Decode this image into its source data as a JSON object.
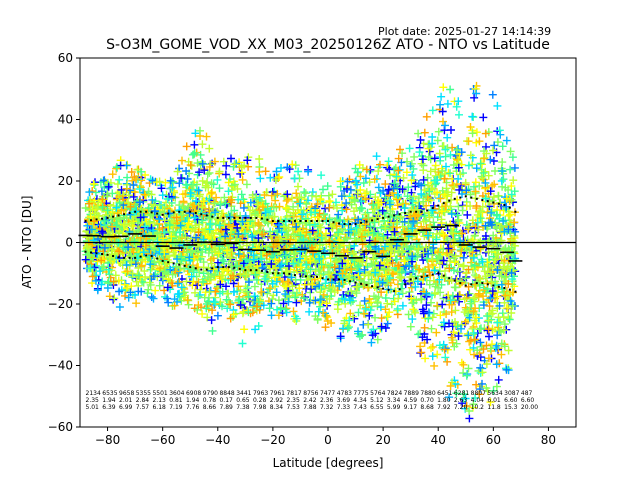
{
  "plot_date": "Plot date: 2025-01-27 14:14:39",
  "chart_data": {
    "type": "scatter",
    "title": "S-O3M_GOME_VOD_XX_M03_20250126Z ATO - NTO vs Latitude",
    "xlabel": "Latitude [degrees]",
    "ylabel": "ATO - NTO [DU]",
    "xlim": [
      -90,
      90
    ],
    "ylim": [
      -60,
      60
    ],
    "xticks": [
      -80,
      -60,
      -40,
      -20,
      0,
      20,
      40,
      60,
      80
    ],
    "yticks": [
      -60,
      -40,
      -20,
      0,
      20,
      40,
      60
    ],
    "grid": false,
    "marker": "+",
    "zero_line": 0,
    "palette": [
      "#0000ff",
      "#0080ff",
      "#00b0ff",
      "#00e0ff",
      "#20ffd0",
      "#40ff90",
      "#80ff60",
      "#c0ff30",
      "#ffff00",
      "#ffc000",
      "#ffa000"
    ],
    "scatter_envelope": {
      "lat": [
        -88,
        -80,
        -75,
        -70,
        -65,
        -60,
        -55,
        -50,
        -45,
        -40,
        -35,
        -30,
        -25,
        -20,
        -15,
        -10,
        -5,
        0,
        5,
        10,
        15,
        20,
        25,
        30,
        35,
        40,
        45,
        50,
        55,
        60,
        65,
        68
      ],
      "upper": [
        18,
        22,
        28,
        25,
        22,
        20,
        22,
        35,
        38,
        25,
        28,
        30,
        28,
        25,
        25,
        26,
        25,
        20,
        22,
        25,
        30,
        28,
        30,
        32,
        42,
        55,
        50,
        45,
        55,
        50,
        35,
        25
      ],
      "lower": [
        -15,
        -18,
        -22,
        -20,
        -18,
        -20,
        -22,
        -25,
        -30,
        -28,
        -25,
        -35,
        -28,
        -25,
        -28,
        -25,
        -28,
        -30,
        -32,
        -30,
        -35,
        -30,
        -25,
        -30,
        -40,
        -45,
        -55,
        -58,
        -55,
        -55,
        -50,
        -20
      ]
    },
    "mean_bias": {
      "lat": [
        -88,
        -85,
        -80,
        -75,
        -70,
        -65,
        -60,
        -55,
        -50,
        -45,
        -40,
        -35,
        -30,
        -25,
        -20,
        -15,
        -10,
        -5,
        0,
        5,
        10,
        15,
        20,
        25,
        30,
        35,
        40,
        45,
        50,
        55,
        60,
        65,
        68
      ],
      "values": [
        2.3,
        2.2,
        1.9,
        2.0,
        2.8,
        2.1,
        -1.2,
        -1.8,
        -0.8,
        0.1,
        -0.6,
        -0.3,
        -2.3,
        -2.5,
        -3.0,
        -2.4,
        -2.3,
        -2.8,
        -3.5,
        -4.3,
        -5.0,
        -3.0,
        -4.5,
        0.9,
        2.8,
        4.0,
        5.0,
        5.5,
        -0.8,
        -1.5,
        -2.0,
        -3.2,
        -6.0
      ]
    },
    "std_envelope": {
      "lat": [
        -88,
        -80,
        -75,
        -70,
        -65,
        -60,
        -55,
        -50,
        -45,
        -40,
        -35,
        -30,
        -25,
        -20,
        -15,
        -10,
        -5,
        0,
        5,
        10,
        15,
        20,
        25,
        30,
        35,
        40,
        45,
        50,
        55,
        60,
        65,
        68
      ],
      "upper": [
        7,
        8,
        9,
        10,
        10,
        9,
        10,
        10,
        9,
        8,
        8,
        8,
        8,
        7,
        7,
        7,
        7,
        7,
        6,
        6,
        7,
        8,
        9,
        10,
        10,
        12,
        14,
        15,
        14,
        13,
        12,
        10
      ],
      "lower": [
        -3,
        -4,
        -5,
        -5,
        -4,
        -6,
        -7,
        -8,
        -9,
        -8,
        -8,
        -9,
        -9,
        -10,
        -10,
        -11,
        -11,
        -12,
        -12,
        -13,
        -14,
        -15,
        -16,
        -12,
        -11,
        -10,
        -12,
        -14,
        -13,
        -14,
        -15,
        -16
      ]
    },
    "stats_rows": {
      "count": [
        "2134",
        "6535",
        "9658",
        "5355",
        "5501",
        "3604",
        "6908",
        "9790",
        "8848",
        "3441",
        "7963",
        "7961",
        "7817",
        "8756",
        "7477",
        "4783",
        "7775",
        "5764",
        "7824",
        "7889",
        "7880",
        "6451",
        "6281",
        "8807",
        "5634",
        "3087",
        "487"
      ],
      "mean": [
        "2.35",
        "1.94",
        "2.01",
        "2.84",
        "2.13",
        "0.81",
        "1.94",
        "0.78",
        "0.17",
        "0.65",
        "0.28",
        "2.92",
        "2.35",
        "2.42",
        "2.36",
        "3.69",
        "4.34",
        "5.12",
        "3.34",
        "4.59",
        "0.70",
        "1.80",
        "2.63",
        "4.04",
        "6.01",
        "6.60",
        "6.60"
      ],
      "std": [
        "5.01",
        "6.39",
        "6.99",
        "7.57",
        "6.18",
        "7.19",
        "7.76",
        "8.66",
        "7.89",
        "7.38",
        "7.98",
        "8.34",
        "7.53",
        "7.88",
        "7.32",
        "7.33",
        "7.43",
        "6.55",
        "5.99",
        "9.17",
        "8.68",
        "7.92",
        "7.20",
        "10.2",
        "11.8",
        "15.3",
        "20.00"
      ]
    }
  }
}
